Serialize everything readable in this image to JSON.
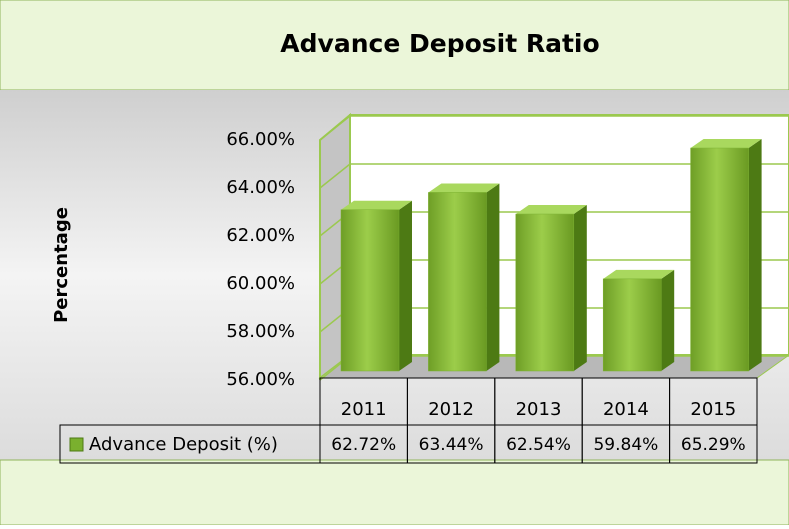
{
  "chart_data": {
    "type": "bar3d",
    "title": "Advance Deposit Ratio",
    "y_label": "Percentage",
    "categories": [
      "2011",
      "2012",
      "2013",
      "2014",
      "2015"
    ],
    "series": [
      {
        "name": "Advance Deposit (%)",
        "color": "#7ab02e",
        "values": [
          62.72,
          63.44,
          62.54,
          59.84,
          65.29
        ],
        "value_labels": [
          "62.72%",
          "63.44%",
          "62.54%",
          "59.84%",
          "65.29%"
        ]
      }
    ],
    "ylim": [
      56,
      66
    ],
    "yticks": [
      {
        "value": 56,
        "label": "56.00%"
      },
      {
        "value": 58,
        "label": "58.00%"
      },
      {
        "value": 60,
        "label": "60.00%"
      },
      {
        "value": 62,
        "label": "62.00%"
      },
      {
        "value": 64,
        "label": "64.00%"
      },
      {
        "value": 66,
        "label": "66.00%"
      }
    ],
    "grid": true
  }
}
